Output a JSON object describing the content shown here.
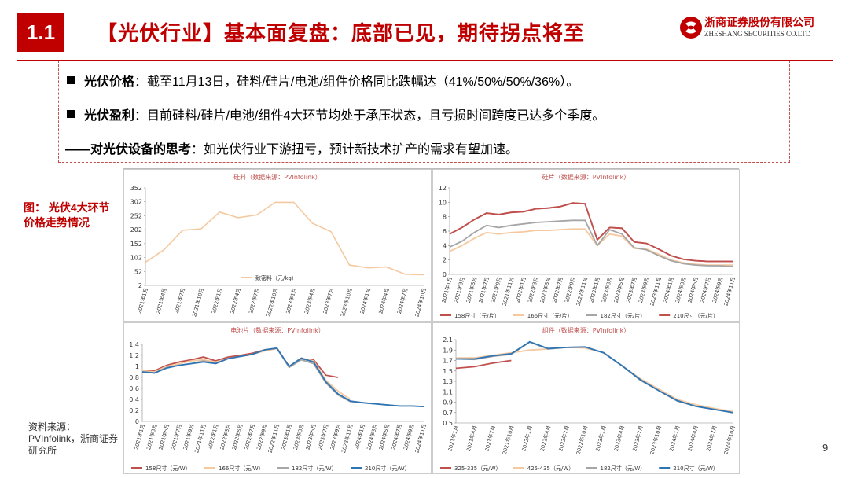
{
  "header": {
    "section": "1.1",
    "title": "【光伏行业】基本面复盘：底部已见，期待拐点将至",
    "logo_cn": "浙商证券股份有限公司",
    "logo_en": "ZHESHANG SECURITIES CO.LTD"
  },
  "bullets": [
    {
      "label": "光伏价格",
      "text": "：截至11月13日，硅料/硅片/电池/组件价格同比跌幅达（41%/50%/50%/36%）。"
    },
    {
      "label": "光伏盈利",
      "text": "：目前硅料/硅片/电池/组件4大环节均处于承压状态，且亏损时间跨度已达多个季度。"
    },
    {
      "label": "——对光伏设备的思考",
      "text": "：如光伏行业下游扭亏，预计新技术扩产的需求有望加速。"
    }
  ],
  "side_label": "图：  光伏4大环节价格走势情况",
  "source": "资料来源：PVInfolink，浙商证券研究所",
  "page_number": "9",
  "colors": {
    "accent": "#c00000",
    "c158": "#c0504d",
    "c166": "#f5c9a0",
    "c182": "#a6a6a6",
    "c210": "#2e75b6"
  },
  "chart_data": [
    {
      "type": "line",
      "title": "硅料（数据来源：PVInfolink）",
      "ylim": [
        2,
        352
      ],
      "yticks": [
        "352",
        "302",
        "252",
        "202",
        "152",
        "102",
        "52",
        "2"
      ],
      "x": [
        "2021年1月",
        "2021年4月",
        "2021年7月",
        "2021年10月",
        "2022年1月",
        "2022年4月",
        "2022年7月",
        "2022年10月",
        "2023年1月",
        "2023年4月",
        "2023年7月",
        "2023年10月",
        "2024年1月",
        "2024年4月",
        "2024年7月",
        "2024年10月"
      ],
      "series": [
        {
          "name": "致密料（元/kg）",
          "color": "#f5c9a0",
          "values": [
            85,
            130,
            200,
            205,
            265,
            245,
            255,
            300,
            300,
            225,
            195,
            75,
            65,
            68,
            42,
            40
          ]
        }
      ]
    },
    {
      "type": "line",
      "title": "硅片（数据来源：PVInfolink）",
      "ylim": [
        0,
        12
      ],
      "yticks": [
        "12",
        "10",
        "8",
        "6",
        "4",
        "2",
        "0"
      ],
      "x": [
        "2021年1月",
        "2021年3月",
        "2021年5月",
        "2021年7月",
        "2021年9月",
        "2021年11月",
        "2022年1月",
        "2022年3月",
        "2022年5月",
        "2022年7月",
        "2022年9月",
        "2022年11月",
        "2023年1月",
        "2023年3月",
        "2023年5月",
        "2023年7月",
        "2023年9月",
        "2023年11月",
        "2024年1月",
        "2024年3月",
        "2024年5月",
        "2024年7月",
        "2024年9月",
        "2024年11月"
      ],
      "series": [
        {
          "name": "158尺寸（元/片）",
          "color": "#c0504d",
          "values": [
            5.6,
            6.5,
            7.6,
            8.5,
            8.3,
            8.6,
            8.7,
            9.1,
            9.2,
            9.4,
            9.9,
            9.8,
            4.8,
            6.5,
            6.4,
            4.5,
            4.3,
            3.5,
            2.6,
            2.1,
            1.9,
            1.8,
            1.8,
            1.8
          ]
        },
        {
          "name": "166尺寸（元/片）",
          "color": "#f5c9a0",
          "values": [
            3.2,
            4.0,
            5.0,
            5.8,
            5.6,
            5.8,
            5.9,
            6.1,
            6.1,
            6.2,
            6.3,
            6.3,
            4.0,
            5.6,
            5.3,
            3.6,
            3.5,
            2.8,
            2.0,
            1.6,
            1.4,
            1.3,
            1.3,
            1.3
          ]
        },
        {
          "name": "182尺寸（元/片）",
          "color": "#a6a6a6",
          "values": [
            3.8,
            4.6,
            5.8,
            6.8,
            6.5,
            6.8,
            7.0,
            7.2,
            7.3,
            7.4,
            7.5,
            7.5,
            4.0,
            6.2,
            5.6,
            3.7,
            3.4,
            2.6,
            1.9,
            1.5,
            1.3,
            1.2,
            1.2,
            1.1
          ]
        },
        {
          "name": "210尺寸（元/片）",
          "color": "#c0504d",
          "values": [
            5.6,
            6.5,
            7.6,
            8.5,
            8.3,
            8.6,
            8.7,
            9.1,
            9.2,
            9.4,
            9.9,
            9.8,
            4.8,
            6.5,
            6.4,
            4.5,
            4.3,
            3.5,
            2.6,
            2.1,
            1.9,
            1.8,
            1.8,
            1.8
          ]
        }
      ]
    },
    {
      "type": "line",
      "title": "电池片（数据来源：PVInfolink）",
      "ylim": [
        0,
        1.4
      ],
      "yticks": [
        "1.4",
        "1.2",
        "1",
        "0.8",
        "0.6",
        "0.4",
        "0.2",
        "0"
      ],
      "x": [
        "2021年1月",
        "2021年3月",
        "2021年5月",
        "2021年7月",
        "2021年9月",
        "2021年11月",
        "2022年1月",
        "2022年3月",
        "2022年5月",
        "2022年7月",
        "2022年9月",
        "2022年11月",
        "2023年1月",
        "2023年3月",
        "2023年5月",
        "2023年7月",
        "2023年9月",
        "2023年11月",
        "2024年1月",
        "2024年3月",
        "2024年5月",
        "2024年7月",
        "2024年9月",
        "2024年11月"
      ],
      "series": [
        {
          "name": "158尺寸（元/W）",
          "color": "#c0504d",
          "values": [
            0.93,
            0.92,
            1.02,
            1.08,
            1.12,
            1.17,
            1.1,
            1.17,
            1.2,
            1.24,
            1.3,
            1.33,
            1.0,
            1.13,
            1.12,
            0.84,
            0.8,
            null,
            null,
            null,
            null,
            null,
            null,
            null
          ]
        },
        {
          "name": "166尺寸（元/W）",
          "color": "#f5c9a0",
          "values": [
            0.92,
            0.9,
            1.0,
            1.05,
            1.1,
            1.12,
            1.08,
            1.14,
            1.18,
            1.22,
            1.28,
            1.32,
            1.0,
            1.15,
            1.1,
            0.75,
            0.55,
            0.4,
            null,
            null,
            null,
            null,
            null,
            null
          ]
        },
        {
          "name": "182尺寸（元/W）",
          "color": "#a6a6a6",
          "values": [
            0.9,
            0.88,
            0.98,
            1.02,
            1.05,
            1.1,
            1.06,
            1.14,
            1.18,
            1.22,
            1.3,
            1.33,
            0.98,
            1.12,
            1.05,
            0.7,
            0.48,
            0.36,
            0.34,
            0.32,
            0.3,
            0.28,
            0.28,
            0.27
          ]
        },
        {
          "name": "210尺寸（元/W）",
          "color": "#2e75b6",
          "values": [
            0.9,
            0.88,
            0.97,
            1.02,
            1.05,
            1.08,
            1.05,
            1.14,
            1.18,
            1.22,
            1.3,
            1.33,
            1.0,
            1.15,
            1.08,
            0.72,
            0.5,
            0.37,
            0.34,
            0.32,
            0.3,
            0.28,
            0.28,
            0.27
          ]
        }
      ]
    },
    {
      "type": "line",
      "title": "组件（数据来源：PVInfolink）",
      "ylim": [
        0.5,
        2.1
      ],
      "yticks": [
        "2.1",
        "1.9",
        "1.7",
        "1.5",
        "1.3",
        "1.1",
        "0.9",
        "0.7",
        "0.5"
      ],
      "x": [
        "2021年1月",
        "2021年4月",
        "2021年7月",
        "2021年10月",
        "2022年1月",
        "2022年4月",
        "2022年7月",
        "2022年10月",
        "2023年1月",
        "2023年4月",
        "2023年7月",
        "2023年10月",
        "2024年1月",
        "2024年4月",
        "2024年7月",
        "2024年10月"
      ],
      "series": [
        {
          "name": "325-335（元/W）",
          "color": "#c0504d",
          "values": [
            1.55,
            1.58,
            1.65,
            1.7,
            null,
            null,
            null,
            null,
            null,
            null,
            null,
            null,
            null,
            null,
            null,
            null
          ]
        },
        {
          "name": "425-435（元/W）",
          "color": "#f5c9a0",
          "values": [
            1.75,
            1.75,
            1.8,
            1.85,
            1.9,
            1.92,
            1.95,
            1.94,
            1.85,
            1.6,
            1.35,
            1.15,
            0.95,
            0.85,
            0.78,
            0.72
          ]
        },
        {
          "name": "182尺寸（元/W）",
          "color": "#a6a6a6",
          "values": [
            1.73,
            1.72,
            1.78,
            1.82,
            2.05,
            1.92,
            1.95,
            1.96,
            1.85,
            1.6,
            1.32,
            1.12,
            0.92,
            0.82,
            0.76,
            0.7
          ]
        },
        {
          "name": "210尺寸（元/W）",
          "color": "#2e75b6",
          "values": [
            1.73,
            1.73,
            1.79,
            1.83,
            2.06,
            1.93,
            1.95,
            1.96,
            1.85,
            1.6,
            1.33,
            1.12,
            0.93,
            0.82,
            0.76,
            0.7
          ]
        }
      ]
    }
  ]
}
